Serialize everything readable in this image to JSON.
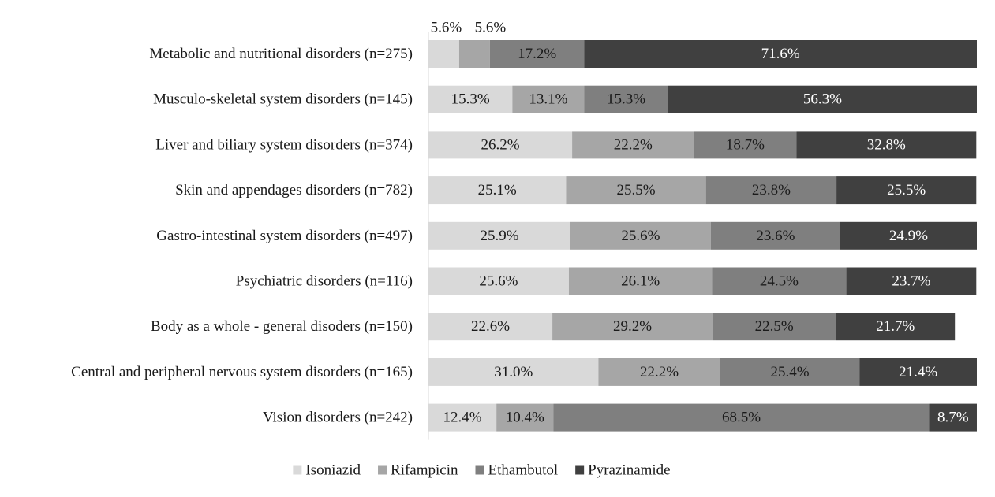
{
  "chart_data": {
    "type": "bar",
    "orientation": "horizontal",
    "stacked": "percent",
    "title": "",
    "xlabel": "",
    "ylabel": "",
    "xlim": [
      0,
      100
    ],
    "grid": false,
    "legend_position": "bottom",
    "categories": [
      "Metabolic and nutritional disorders (n=275)",
      "Musculo-skeletal system disorders (n=145)",
      "Liver and biliary system disorders (n=374)",
      "Skin and appendages disorders (n=782)",
      "Gastro-intestinal system disorders (n=497)",
      "Psychiatric disorders (n=116)",
      "Body as a whole - general disoders (n=150)",
      "Central and peripheral nervous system disorders (n=165)",
      "Vision disorders (n=242)"
    ],
    "series": [
      {
        "name": "Isoniazid",
        "color": "#d9d9d9",
        "label_color": "#1a1a1a",
        "values": [
          5.6,
          15.3,
          26.2,
          25.1,
          25.9,
          25.6,
          22.6,
          31.0,
          12.4
        ],
        "labels": [
          "",
          "15.3%",
          "26.2%",
          "25.1%",
          "25.9%",
          "25.6%",
          "22.6%",
          "31.0%",
          "12.4%"
        ]
      },
      {
        "name": "Rifampicin",
        "color": "#a6a6a6",
        "label_color": "#1a1a1a",
        "values": [
          5.6,
          13.1,
          22.2,
          25.5,
          25.6,
          26.1,
          29.2,
          22.2,
          10.4
        ],
        "labels": [
          "",
          "13.1%",
          "22.2%",
          "25.5%",
          "25.6%",
          "26.1%",
          "29.2%",
          "22.2%",
          "10.4%"
        ]
      },
      {
        "name": "Ethambutol",
        "color": "#7f7f7f",
        "label_color": "#1a1a1a",
        "values": [
          17.2,
          15.3,
          18.7,
          23.8,
          23.6,
          24.5,
          22.5,
          25.4,
          68.5
        ],
        "labels": [
          "17.2%",
          "15.3%",
          "18.7%",
          "23.8%",
          "23.6%",
          "24.5%",
          "22.5%",
          "25.4%",
          "68.5%"
        ]
      },
      {
        "name": "Pyrazinamide",
        "color": "#404040",
        "label_color": "#ffffff",
        "values": [
          71.6,
          56.3,
          32.8,
          25.5,
          24.9,
          23.7,
          21.7,
          21.4,
          8.7
        ],
        "labels": [
          "71.6%",
          "56.3%",
          "32.8%",
          "25.5%",
          "24.9%",
          "23.7%",
          "21.7%",
          "21.4%",
          "8.7%"
        ]
      }
    ],
    "annotations": [
      "5.6%",
      "5.6%"
    ]
  }
}
